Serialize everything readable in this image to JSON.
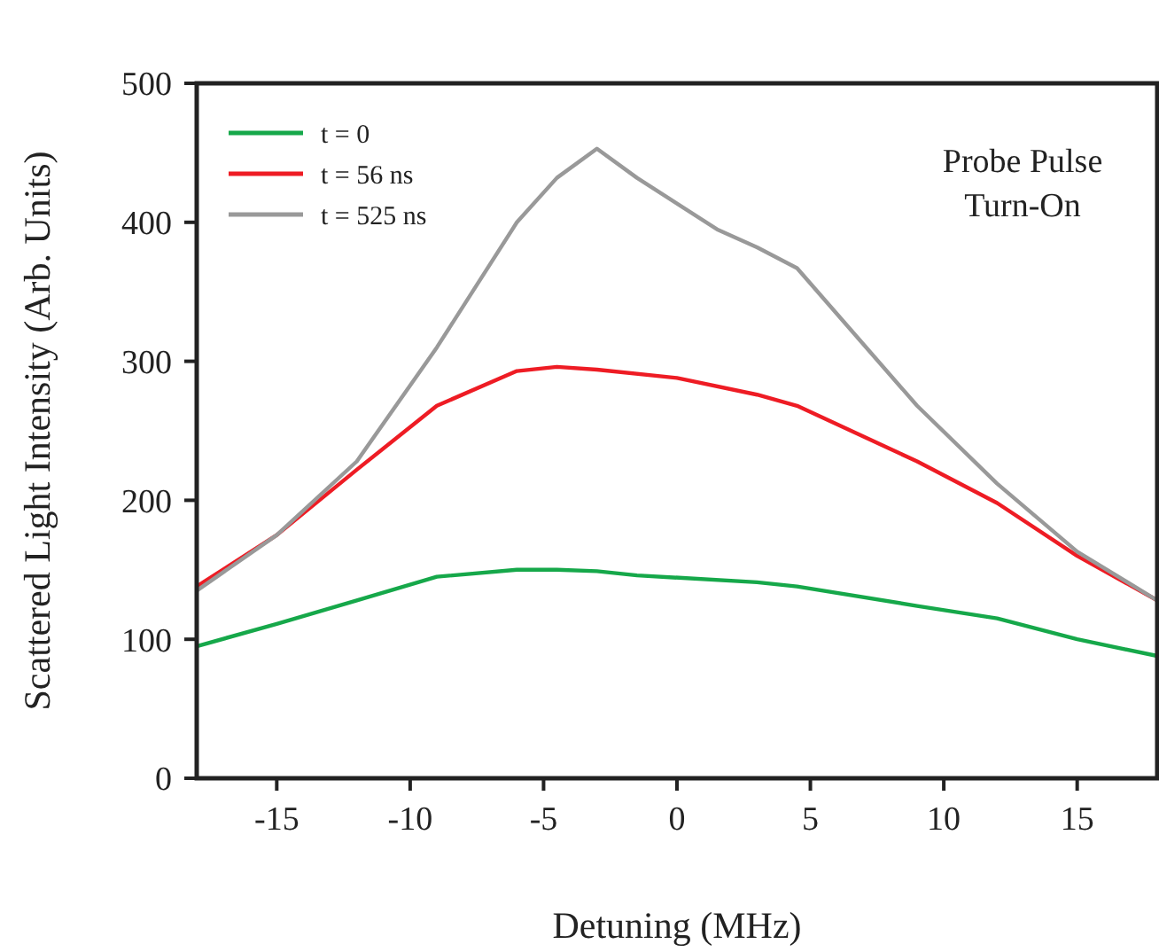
{
  "chart_data": {
    "type": "line",
    "xlabel": "Detuning (MHz)",
    "ylabel": "Scattered Light Intensity (Arb. Units)",
    "xlim": [
      -18,
      18
    ],
    "ylim": [
      0,
      500
    ],
    "xticks": [
      -15,
      -10,
      -5,
      0,
      5,
      10,
      15
    ],
    "yticks": [
      0,
      100,
      200,
      300,
      400,
      500
    ],
    "grid": false,
    "legend": "top left",
    "line_style": "solid",
    "marker": "none",
    "annotations": [
      "Probe Pulse\nTurn-On"
    ],
    "series": [
      {
        "name": "t = 0",
        "color": "#16a84a",
        "x": [
          -18,
          -15,
          -12,
          -9,
          -6,
          -4.5,
          -3,
          -1.5,
          3,
          4.5,
          9,
          12,
          15,
          18
        ],
        "values": [
          95,
          111,
          128,
          145,
          150,
          150,
          149,
          146,
          141,
          138,
          124,
          115,
          100,
          88
        ]
      },
      {
        "name": "t = 56 ns",
        "color": "#ee1c24",
        "x": [
          -18,
          -15,
          -12,
          -9,
          -6,
          -4.5,
          -3,
          0,
          3,
          4.5,
          9,
          12,
          15,
          18
        ],
        "values": [
          138,
          175,
          222,
          268,
          293,
          296,
          294,
          288,
          276,
          268,
          228,
          198,
          160,
          128
        ]
      },
      {
        "name": "t = 525 ns",
        "color": "#999999",
        "x": [
          -18,
          -15,
          -12,
          -9,
          -6,
          -4.5,
          -3,
          -1.5,
          1.5,
          3,
          4.5,
          9,
          12,
          15,
          18
        ],
        "values": [
          135,
          175,
          228,
          310,
          400,
          432,
          453,
          432,
          395,
          382,
          367,
          268,
          212,
          163,
          128
        ]
      }
    ]
  }
}
